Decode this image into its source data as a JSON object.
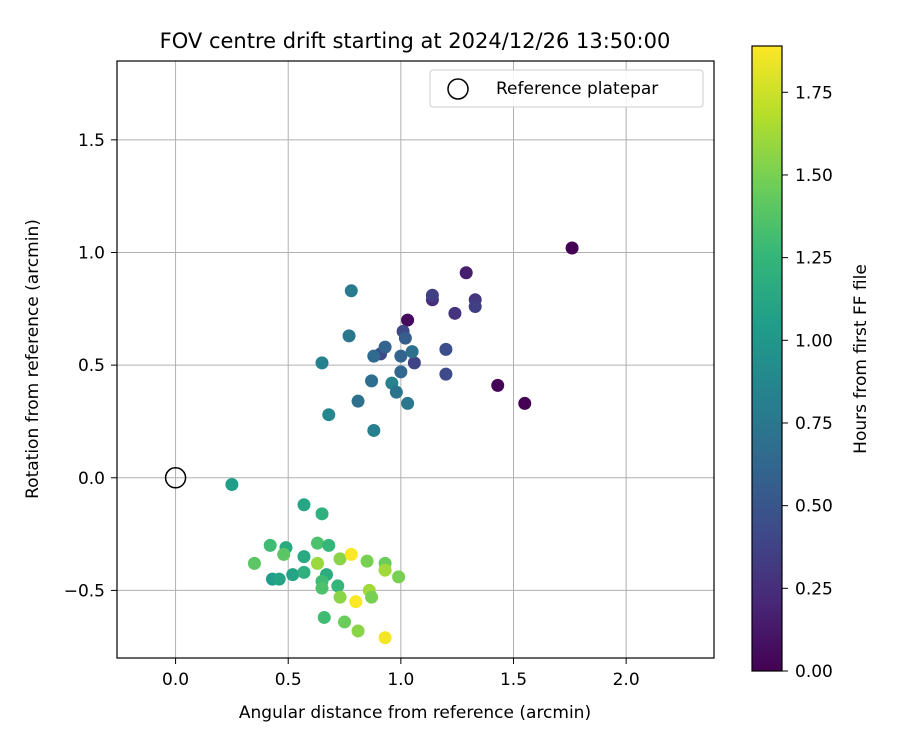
{
  "chart_data": {
    "type": "scatter",
    "title": "FOV centre drift starting at 2024/12/26 13:50:00",
    "xlabel": "Angular distance from reference (arcmin)",
    "ylabel": "Rotation from reference (arcmin)",
    "xlim": [
      -0.26,
      2.39
    ],
    "ylim": [
      -0.8,
      1.85
    ],
    "xticks": [
      0.0,
      0.5,
      1.0,
      1.5,
      2.0
    ],
    "xtick_labels": [
      "0.0",
      "0.5",
      "1.0",
      "1.5",
      "2.0"
    ],
    "yticks": [
      -0.5,
      0.0,
      0.5,
      1.0,
      1.5
    ],
    "ytick_labels": [
      "−0.5",
      "0.0",
      "0.5",
      "1.0",
      "1.5"
    ],
    "grid": true,
    "legend": {
      "placement": "top-right",
      "entries": [
        "Reference platepar"
      ]
    },
    "reference_point": {
      "x": 0.0,
      "y": 0.0,
      "label": "Reference platepar"
    },
    "colorbar": {
      "label": "Hours from first FF file",
      "colormap": "viridis",
      "range": [
        0.0,
        1.89
      ],
      "ticks": [
        0.0,
        0.25,
        0.5,
        0.75,
        1.0,
        1.25,
        1.5,
        1.75
      ],
      "tick_labels": [
        "0.00",
        "0.25",
        "0.50",
        "0.75",
        "1.00",
        "1.25",
        "1.50",
        "1.75"
      ]
    },
    "points": [
      {
        "x": 1.76,
        "y": 1.02,
        "c": 0.0
      },
      {
        "x": 1.55,
        "y": 0.33,
        "c": 0.0
      },
      {
        "x": 1.43,
        "y": 0.41,
        "c": 0.02
      },
      {
        "x": 1.03,
        "y": 0.7,
        "c": 0.05
      },
      {
        "x": 1.29,
        "y": 0.91,
        "c": 0.15
      },
      {
        "x": 1.14,
        "y": 0.79,
        "c": 0.25
      },
      {
        "x": 1.14,
        "y": 0.81,
        "c": 0.35
      },
      {
        "x": 1.33,
        "y": 0.79,
        "c": 0.3
      },
      {
        "x": 1.33,
        "y": 0.76,
        "c": 0.35
      },
      {
        "x": 1.24,
        "y": 0.73,
        "c": 0.28
      },
      {
        "x": 1.01,
        "y": 0.65,
        "c": 0.4
      },
      {
        "x": 1.02,
        "y": 0.62,
        "c": 0.55
      },
      {
        "x": 1.2,
        "y": 0.57,
        "c": 0.45
      },
      {
        "x": 1.2,
        "y": 0.46,
        "c": 0.42
      },
      {
        "x": 1.06,
        "y": 0.51,
        "c": 0.38
      },
      {
        "x": 0.91,
        "y": 0.55,
        "c": 0.4
      },
      {
        "x": 0.93,
        "y": 0.58,
        "c": 0.6
      },
      {
        "x": 0.88,
        "y": 0.54,
        "c": 0.65
      },
      {
        "x": 1.0,
        "y": 0.54,
        "c": 0.6
      },
      {
        "x": 1.05,
        "y": 0.56,
        "c": 0.7
      },
      {
        "x": 1.0,
        "y": 0.47,
        "c": 0.62
      },
      {
        "x": 0.78,
        "y": 0.83,
        "c": 0.78
      },
      {
        "x": 0.77,
        "y": 0.63,
        "c": 0.75
      },
      {
        "x": 0.65,
        "y": 0.51,
        "c": 0.82
      },
      {
        "x": 0.87,
        "y": 0.43,
        "c": 0.68
      },
      {
        "x": 0.96,
        "y": 0.42,
        "c": 0.85
      },
      {
        "x": 0.98,
        "y": 0.38,
        "c": 0.72
      },
      {
        "x": 0.81,
        "y": 0.34,
        "c": 0.7
      },
      {
        "x": 1.03,
        "y": 0.33,
        "c": 0.75
      },
      {
        "x": 0.68,
        "y": 0.28,
        "c": 0.88
      },
      {
        "x": 0.88,
        "y": 0.21,
        "c": 0.82
      },
      {
        "x": 0.25,
        "y": -0.03,
        "c": 1.05
      },
      {
        "x": 0.57,
        "y": -0.12,
        "c": 1.12
      },
      {
        "x": 0.65,
        "y": -0.16,
        "c": 1.2
      },
      {
        "x": 0.42,
        "y": -0.3,
        "c": 1.3
      },
      {
        "x": 0.49,
        "y": -0.31,
        "c": 1.15
      },
      {
        "x": 0.63,
        "y": -0.29,
        "c": 1.35
      },
      {
        "x": 0.68,
        "y": -0.3,
        "c": 1.25
      },
      {
        "x": 0.48,
        "y": -0.34,
        "c": 1.4
      },
      {
        "x": 0.57,
        "y": -0.35,
        "c": 1.15
      },
      {
        "x": 0.35,
        "y": -0.38,
        "c": 1.4
      },
      {
        "x": 0.63,
        "y": -0.38,
        "c": 1.6
      },
      {
        "x": 0.73,
        "y": -0.36,
        "c": 1.55
      },
      {
        "x": 0.78,
        "y": -0.34,
        "c": 1.88
      },
      {
        "x": 0.85,
        "y": -0.37,
        "c": 1.5
      },
      {
        "x": 0.93,
        "y": -0.38,
        "c": 1.45
      },
      {
        "x": 0.93,
        "y": -0.41,
        "c": 1.62
      },
      {
        "x": 0.99,
        "y": -0.44,
        "c": 1.5
      },
      {
        "x": 0.52,
        "y": -0.43,
        "c": 1.1
      },
      {
        "x": 0.57,
        "y": -0.42,
        "c": 1.2
      },
      {
        "x": 0.67,
        "y": -0.43,
        "c": 1.18
      },
      {
        "x": 0.43,
        "y": -0.45,
        "c": 1.05
      },
      {
        "x": 0.46,
        "y": -0.45,
        "c": 1.1
      },
      {
        "x": 0.65,
        "y": -0.46,
        "c": 1.3
      },
      {
        "x": 0.65,
        "y": -0.49,
        "c": 1.35
      },
      {
        "x": 0.72,
        "y": -0.48,
        "c": 1.25
      },
      {
        "x": 0.73,
        "y": -0.53,
        "c": 1.55
      },
      {
        "x": 0.86,
        "y": -0.5,
        "c": 1.62
      },
      {
        "x": 0.87,
        "y": -0.53,
        "c": 1.5
      },
      {
        "x": 0.8,
        "y": -0.55,
        "c": 1.88
      },
      {
        "x": 0.66,
        "y": -0.62,
        "c": 1.3
      },
      {
        "x": 0.75,
        "y": -0.64,
        "c": 1.45
      },
      {
        "x": 0.81,
        "y": -0.68,
        "c": 1.55
      },
      {
        "x": 0.93,
        "y": -0.71,
        "c": 1.86
      }
    ]
  }
}
